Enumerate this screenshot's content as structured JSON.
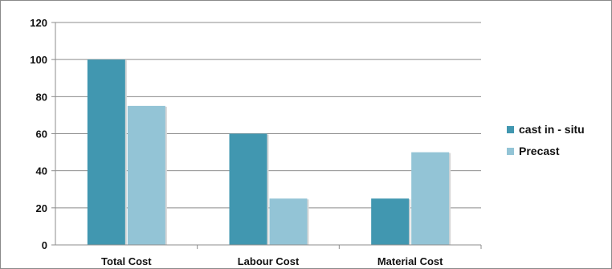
{
  "chart_data": {
    "type": "bar",
    "title": "",
    "xlabel": "",
    "ylabel": "",
    "categories": [
      "Total Cost",
      "Labour Cost",
      "Material Cost"
    ],
    "series": [
      {
        "name": "cast in - situ",
        "values": [
          100,
          60,
          25
        ],
        "color": "#4197b0"
      },
      {
        "name": "Precast",
        "values": [
          75,
          25,
          50
        ],
        "color": "#93c4d6"
      }
    ],
    "ylim": [
      0,
      120
    ],
    "yticks": [
      0,
      20,
      40,
      60,
      80,
      100,
      120
    ],
    "grid": true,
    "legend_position": "right"
  }
}
